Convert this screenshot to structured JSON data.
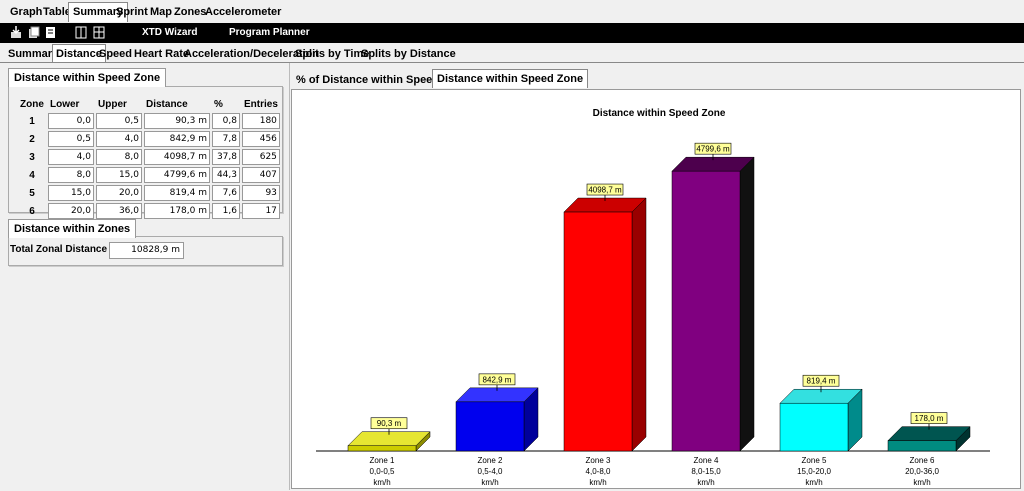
{
  "top_tabs": [
    {
      "label": "Graph",
      "active": false
    },
    {
      "label": "Table",
      "active": false
    },
    {
      "label": "Summary",
      "active": true
    },
    {
      "label": "Sprint",
      "active": false
    },
    {
      "label": "Map",
      "active": false
    },
    {
      "label": "Zones",
      "active": false
    },
    {
      "label": "Accelerometer",
      "active": false
    }
  ],
  "toolbar": {
    "icons": [
      "import-icon",
      "export-icon",
      "copy-icon",
      "split-icon",
      "settings-icon"
    ],
    "xtd_wizard": "XTD Wizard",
    "program_planner": "Program Planner"
  },
  "sub_tabs": [
    {
      "label": "Summary",
      "active": false
    },
    {
      "label": "Distance",
      "active": true
    },
    {
      "label": "Speed",
      "active": false
    },
    {
      "label": "Heart Rate",
      "active": false
    },
    {
      "label": "Acceleration/Deceleration",
      "active": false
    },
    {
      "label": "Splits by Time",
      "active": false
    },
    {
      "label": "Splits by Distance",
      "active": false
    }
  ],
  "zone_table": {
    "title": "Distance within Speed Zone",
    "headers": [
      "Zone",
      "Lower",
      "Upper",
      "Distance",
      "%",
      "Entries"
    ],
    "rows": [
      {
        "zone": "1",
        "lower": "0,0",
        "upper": "0,5",
        "distance": "90,3 m",
        "pct": "0,8",
        "entries": "180"
      },
      {
        "zone": "2",
        "lower": "0,5",
        "upper": "4,0",
        "distance": "842,9 m",
        "pct": "7,8",
        "entries": "456"
      },
      {
        "zone": "3",
        "lower": "4,0",
        "upper": "8,0",
        "distance": "4098,7 m",
        "pct": "37,8",
        "entries": "625"
      },
      {
        "zone": "4",
        "lower": "8,0",
        "upper": "15,0",
        "distance": "4799,6 m",
        "pct": "44,3",
        "entries": "407"
      },
      {
        "zone": "5",
        "lower": "15,0",
        "upper": "20,0",
        "distance": "819,4 m",
        "pct": "7,6",
        "entries": "93"
      },
      {
        "zone": "6",
        "lower": "20,0",
        "upper": "36,0",
        "distance": "178,0 m",
        "pct": "1,6",
        "entries": "17"
      }
    ]
  },
  "zones_summary": {
    "title": "Distance within Zones",
    "total_label": "Total Zonal Distance",
    "total_value": "10828,9 m"
  },
  "chart_tabs": [
    {
      "label": "% of Distance within Speed Zone",
      "active": false
    },
    {
      "label": "Distance within Speed Zone",
      "active": true
    }
  ],
  "chart_data": {
    "type": "bar",
    "title": "Distance within Speed Zone",
    "categories": [
      "Zone 1",
      "Zone 2",
      "Zone 3",
      "Zone 4",
      "Zone 5",
      "Zone 6"
    ],
    "ranges": [
      "0,0-0,5",
      "0,5-4,0",
      "4,0-8,0",
      "8,0-15,0",
      "15,0-20,0",
      "20,0-36,0"
    ],
    "unit": "km/h",
    "values": [
      90.3,
      842.9,
      4098.7,
      4799.6,
      819.4,
      178.0
    ],
    "value_labels": [
      "90,3 m",
      "842,9 m",
      "4098,7 m",
      "4799,6 m",
      "819,4 m",
      "178,0 m"
    ],
    "colors": [
      {
        "front": "#cccc00",
        "top": "#e6e633",
        "side": "#8c8c00"
      },
      {
        "front": "#0000ee",
        "top": "#3333ff",
        "side": "#00009a"
      },
      {
        "front": "#ff0000",
        "top": "#cc0000",
        "side": "#990000"
      },
      {
        "front": "#800080",
        "top": "#4d004d",
        "side": "#111111"
      },
      {
        "front": "#00ffff",
        "top": "#33e0e0",
        "side": "#008b8b"
      },
      {
        "front": "#008b80",
        "top": "#005550",
        "side": "#003330"
      }
    ],
    "ylim": [
      0,
      5300
    ],
    "grid": false,
    "legend": "none"
  }
}
